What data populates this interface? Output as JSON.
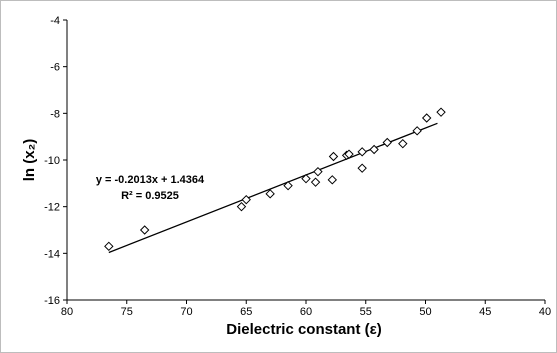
{
  "chart_data": {
    "type": "scatter",
    "title": "",
    "xlabel": "Dielectric constant (ε)",
    "ylabel": "ln (x₂)",
    "x_reversed": true,
    "xlim": [
      80,
      40
    ],
    "ylim": [
      -16,
      -4
    ],
    "x_ticks": [
      "80",
      "75",
      "70",
      "65",
      "60",
      "55",
      "50",
      "45",
      "40"
    ],
    "y_ticks": [
      "-4",
      "-6",
      "-8",
      "-10",
      "-12",
      "-14",
      "-16"
    ],
    "grid": false,
    "marker": "diamond",
    "points": [
      {
        "x": 76.5,
        "y": -13.7
      },
      {
        "x": 73.5,
        "y": -13.0
      },
      {
        "x": 65.4,
        "y": -12.0
      },
      {
        "x": 65.0,
        "y": -11.7
      },
      {
        "x": 63.0,
        "y": -11.45
      },
      {
        "x": 61.5,
        "y": -11.1
      },
      {
        "x": 60.0,
        "y": -10.8
      },
      {
        "x": 59.2,
        "y": -10.95
      },
      {
        "x": 59.0,
        "y": -10.5
      },
      {
        "x": 57.8,
        "y": -10.85
      },
      {
        "x": 57.7,
        "y": -9.85
      },
      {
        "x": 56.6,
        "y": -9.8
      },
      {
        "x": 56.4,
        "y": -9.75
      },
      {
        "x": 55.3,
        "y": -10.35
      },
      {
        "x": 55.3,
        "y": -9.65
      },
      {
        "x": 54.3,
        "y": -9.55
      },
      {
        "x": 53.2,
        "y": -9.25
      },
      {
        "x": 51.9,
        "y": -9.3
      },
      {
        "x": 50.7,
        "y": -8.75
      },
      {
        "x": 49.9,
        "y": -8.2
      },
      {
        "x": 48.7,
        "y": -7.95
      }
    ],
    "trendline": {
      "slope": -0.2013,
      "intercept": 1.4364,
      "x_range": [
        76.5,
        49.0
      ]
    },
    "annotations": {
      "equation": "y = -0.2013x + 1.4364",
      "r_squared": "R² = 0.9525"
    }
  }
}
